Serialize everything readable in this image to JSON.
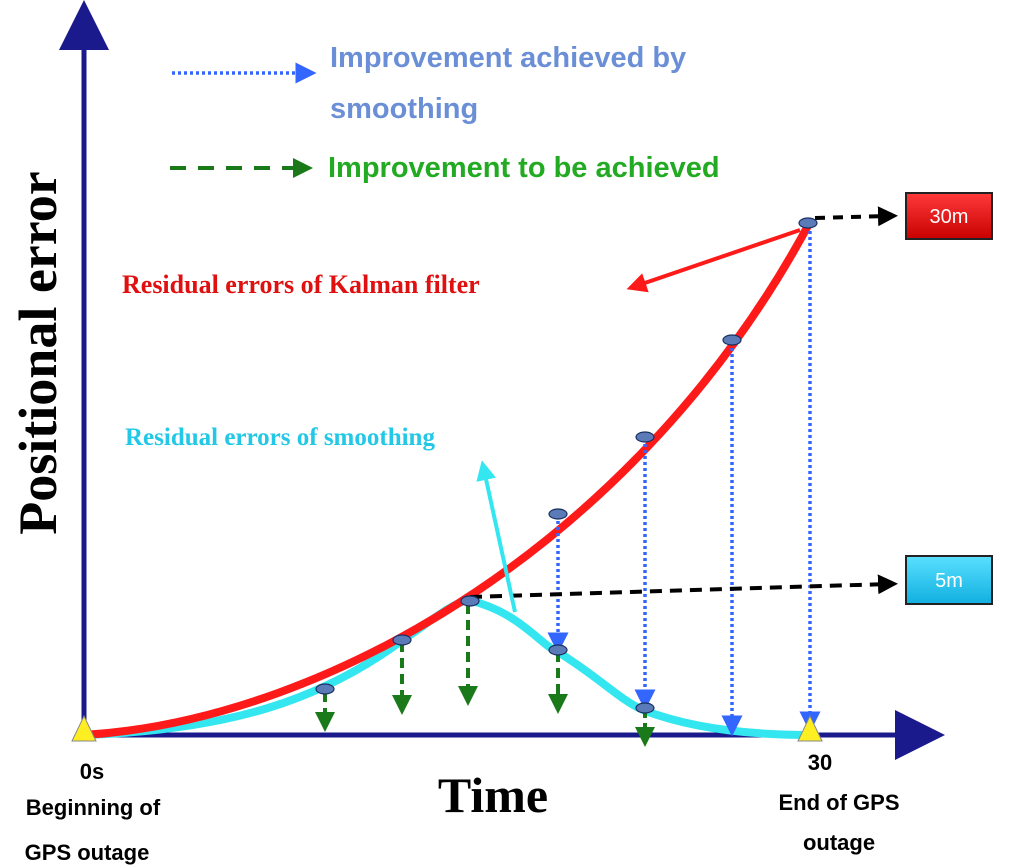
{
  "axes": {
    "y_label": "Positional error",
    "x_label": "Time",
    "x_start": "0s",
    "x_end": "30",
    "start_caption_line1": "Beginning of",
    "start_caption_line2": "GPS outage",
    "end_caption_line1": "End of GPS",
    "end_caption_line2": "outage"
  },
  "legend": {
    "smoothing_line1": "Improvement achieved by",
    "smoothing_line2": "smoothing",
    "to_be_achieved": "Improvement to be achieved"
  },
  "labels": {
    "kalman": "Residual errors of Kalman filter",
    "smoothing": "Residual errors of smoothing"
  },
  "boxes": {
    "kalman_end": "30m",
    "smoothing_peak": "5m"
  },
  "colors": {
    "axis": "#1a1a8c",
    "kalman": "#ff1a1a",
    "smoothing": "#33e6f0",
    "blue_arrow": "#3366ff",
    "green_arrow": "#1a7a1a",
    "legend_blue_text": "#6b8fd6",
    "legend_green_text": "#22aa22",
    "kalman_text": "#e01010",
    "smoothing_text": "#22c8e6",
    "box_red": "#e01010",
    "box_cyan": "#22c8f0",
    "marker": "#5a7ab8",
    "triangle": "#ffee22"
  }
}
